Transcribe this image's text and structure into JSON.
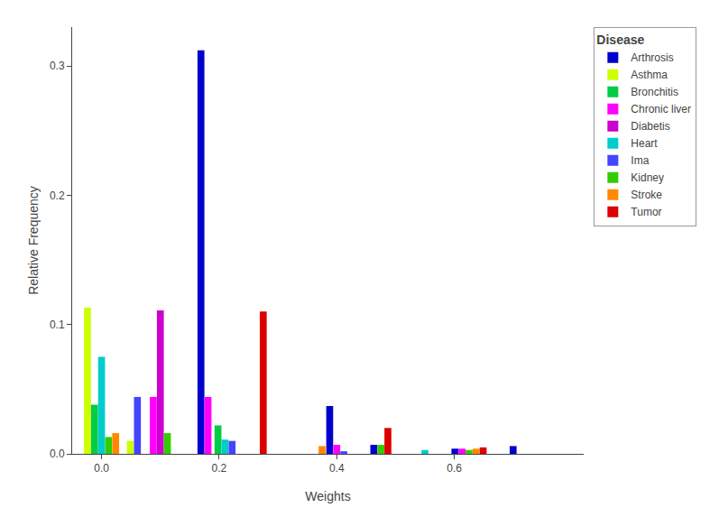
{
  "chart_data": {
    "type": "bar",
    "xlabel": "Weights",
    "ylabel": "Relative Frequency",
    "legend_title": "Disease",
    "x": [
      0.0,
      0.055,
      0.1,
      0.175,
      0.21,
      0.275,
      0.375,
      0.4,
      0.475,
      0.55,
      0.625,
      0.7
    ],
    "series": [
      {
        "name": "Arthrosis",
        "color": "#0000CD",
        "values": [
          null,
          null,
          null,
          0.312,
          null,
          null,
          null,
          0.037,
          0.007,
          null,
          0.004,
          0.006
        ]
      },
      {
        "name": "Asthma",
        "color": "#CCFF00",
        "values": [
          0.113,
          0.01,
          null,
          null,
          null,
          null,
          null,
          null,
          null,
          null,
          null,
          null
        ]
      },
      {
        "name": "Bronchitis",
        "color": "#00CC44",
        "values": [
          0.038,
          null,
          null,
          null,
          0.022,
          null,
          null,
          null,
          null,
          null,
          null,
          null
        ]
      },
      {
        "name": "Chronic liver",
        "color": "#FF00FF",
        "values": [
          null,
          null,
          0.044,
          0.044,
          null,
          null,
          null,
          0.007,
          null,
          null,
          0.004,
          null
        ]
      },
      {
        "name": "Diabetis",
        "color": "#CC00CC",
        "values": [
          null,
          null,
          0.111,
          null,
          null,
          null,
          null,
          null,
          null,
          null,
          null,
          null
        ]
      },
      {
        "name": "Heart",
        "color": "#00CCCC",
        "values": [
          0.075,
          null,
          null,
          null,
          0.011,
          null,
          null,
          null,
          null,
          0.003,
          null,
          null
        ]
      },
      {
        "name": "Ima",
        "color": "#4444FF",
        "values": [
          null,
          0.044,
          null,
          null,
          0.01,
          null,
          null,
          0.002,
          null,
          null,
          null,
          null
        ]
      },
      {
        "name": "Kidney",
        "color": "#33CC00",
        "values": [
          0.013,
          null,
          0.016,
          null,
          null,
          null,
          null,
          null,
          0.007,
          null,
          0.003,
          null
        ]
      },
      {
        "name": "Stroke",
        "color": "#FF8800",
        "values": [
          0.016,
          null,
          null,
          null,
          null,
          null,
          0.006,
          null,
          null,
          null,
          0.004,
          null
        ]
      },
      {
        "name": "Tumor",
        "color": "#DD0000",
        "values": [
          null,
          null,
          null,
          null,
          null,
          0.11,
          null,
          null,
          0.02,
          null,
          0.005,
          null
        ]
      }
    ],
    "xlim": [
      -0.05,
      0.82
    ],
    "ylim": [
      0,
      0.33
    ],
    "xticks": [
      {
        "value": 0,
        "label": "0.0"
      },
      0.2,
      0.4,
      0.6
    ],
    "yticks": [
      {
        "value": 0,
        "label": "0.0"
      },
      0.1,
      0.2,
      0.3
    ],
    "grid": false,
    "legend": "upper right"
  }
}
